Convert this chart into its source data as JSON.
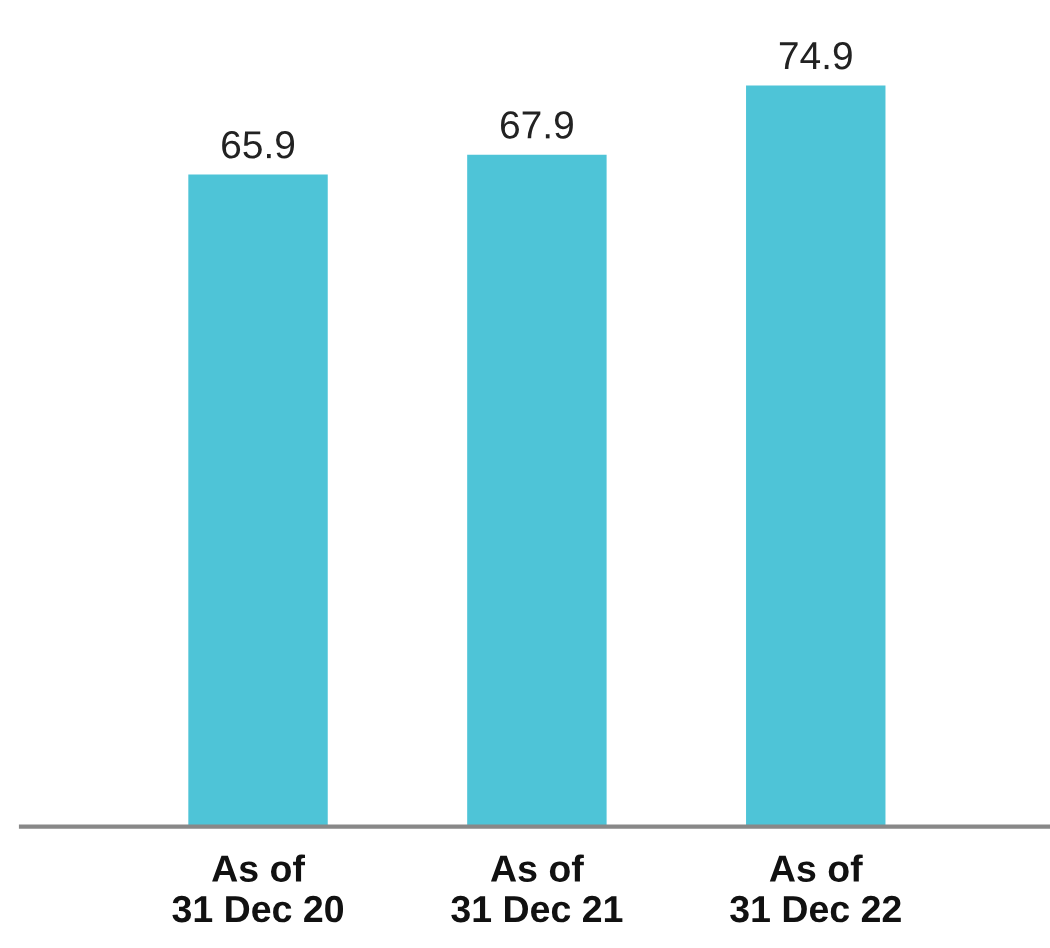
{
  "chart_data": {
    "type": "bar",
    "categories": [
      "As of\n31 Dec 20",
      "As of\n31 Dec 21",
      "As of\n31 Dec 22"
    ],
    "values": [
      65.9,
      67.9,
      74.9
    ],
    "color": "#4ec4d7",
    "data_labels": true,
    "grid": false,
    "legend": false
  }
}
